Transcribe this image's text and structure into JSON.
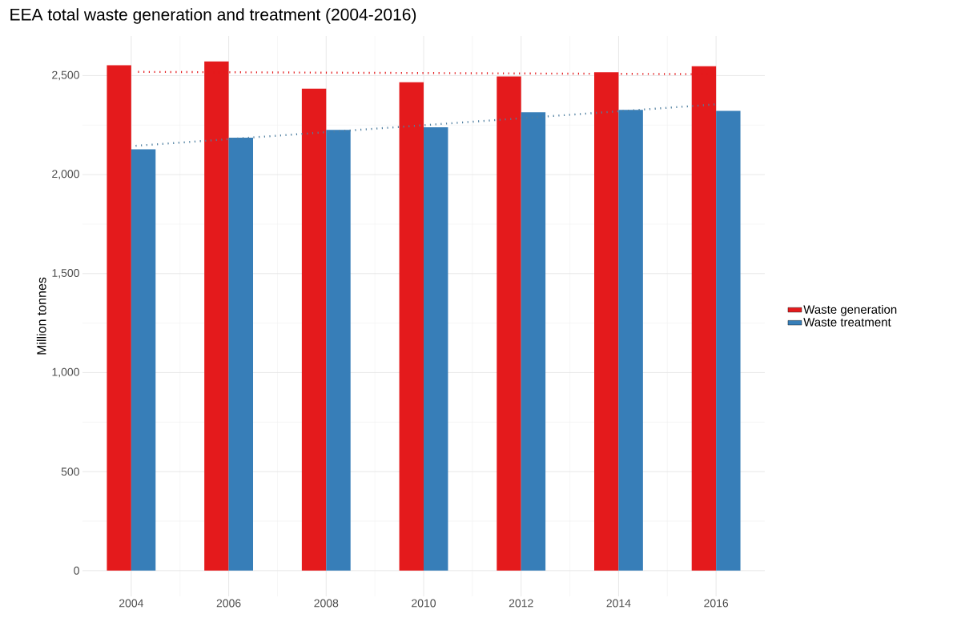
{
  "chart_data": {
    "type": "bar",
    "title": "EEA total waste generation and treatment (2004-2016)",
    "ylabel": "Million tonnes",
    "x": [
      2004,
      2006,
      2008,
      2010,
      2012,
      2014,
      2016
    ],
    "series": [
      {
        "name": "Waste generation",
        "color": "#e41a1c",
        "values": [
          2552,
          2572,
          2434,
          2466,
          2496,
          2517,
          2547
        ]
      },
      {
        "name": "Waste treatment",
        "color": "#377eb8",
        "values": [
          2128,
          2187,
          2226,
          2239,
          2315,
          2327,
          2322
        ]
      },
      {
        "type": "line",
        "color": "#e41a1c",
        "line_style": "dotted",
        "x": [
          2004.05,
          2016
        ],
        "values": [
          2519,
          2507
        ]
      },
      {
        "type": "line",
        "color": "#4f7fa0",
        "line_style": "dotted",
        "x": [
          2004,
          2016
        ],
        "values": [
          2144,
          2355
        ]
      }
    ],
    "xlim": [
      2003,
      2017
    ],
    "ylim": [
      -130,
      2700
    ],
    "xticks": [
      2004,
      2006,
      2008,
      2010,
      2012,
      2014,
      2016
    ],
    "yticks": [
      0,
      {
        "value": 500,
        "label": "500"
      },
      {
        "value": 1000,
        "label": "1,000"
      },
      {
        "value": 1500,
        "label": "1,500"
      },
      {
        "value": 2000,
        "label": "2,000"
      },
      {
        "value": 2500,
        "label": "2,500"
      }
    ],
    "grid": true,
    "legend": "right"
  }
}
